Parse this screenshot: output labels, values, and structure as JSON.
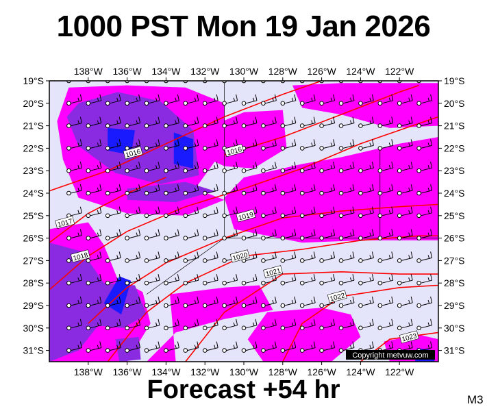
{
  "title": "1000 PST Mon 19 Jan 2026",
  "forecast": "Forecast +54 hr",
  "model": "M3",
  "copyright": "Copyright metvuw.com",
  "colors": {
    "background": "#e4e4fa",
    "rain_light": "#ff00ff",
    "rain_medium": "#8a2be2",
    "rain_heavy": "#1a1aff",
    "isobar": "#ff0000",
    "barb": "#000000"
  },
  "map": {
    "lon_range": [
      -140,
      -120
    ],
    "lat_range": [
      -31.5,
      -19
    ],
    "x_ticks": [
      {
        "value": -138,
        "label": "138°W"
      },
      {
        "value": -136,
        "label": "136°W"
      },
      {
        "value": -134,
        "label": "134°W"
      },
      {
        "value": -132,
        "label": "132°W"
      },
      {
        "value": -130,
        "label": "130°W"
      },
      {
        "value": -128,
        "label": "128°W"
      },
      {
        "value": -126,
        "label": "126°W"
      },
      {
        "value": -124,
        "label": "124°W"
      },
      {
        "value": -122,
        "label": "122°W"
      }
    ],
    "y_ticks": [
      {
        "value": -19,
        "label": "19°S"
      },
      {
        "value": -20,
        "label": "20°S"
      },
      {
        "value": -21,
        "label": "21°S"
      },
      {
        "value": -22,
        "label": "22°S"
      },
      {
        "value": -23,
        "label": "23°S"
      },
      {
        "value": -24,
        "label": "24°S"
      },
      {
        "value": -25,
        "label": "25°S"
      },
      {
        "value": -26,
        "label": "26°S"
      },
      {
        "value": -27,
        "label": "27°S"
      },
      {
        "value": -28,
        "label": "28°S"
      },
      {
        "value": -29,
        "label": "29°S"
      },
      {
        "value": -30,
        "label": "30°S"
      },
      {
        "value": -31,
        "label": "31°S"
      }
    ],
    "isobars": [
      {
        "label": "1016",
        "label_at": [
          -135.7,
          -22.2
        ],
        "points": [
          [
            -140,
            -23.9
          ],
          [
            -137,
            -23
          ],
          [
            -134,
            -21.8
          ],
          [
            -131,
            -20.6
          ],
          [
            -128,
            -19.6
          ],
          [
            -126,
            -19
          ]
        ]
      },
      {
        "label": "1016",
        "label_at": [
          -130.5,
          -22.1
        ],
        "points": [
          [
            -131,
            -22.3
          ],
          [
            -128,
            -21.5
          ],
          [
            -125,
            -20.5
          ],
          [
            -122,
            -19.5
          ],
          [
            -121,
            -19.2
          ]
        ]
      },
      {
        "label": "1017",
        "label_at": [
          -139.2,
          -25.3
        ],
        "points": [
          [
            -140,
            -26.2
          ],
          [
            -138,
            -24.9
          ],
          [
            -136,
            -24
          ],
          [
            -134,
            -23.3
          ]
        ]
      },
      {
        "label": "1018",
        "label_at": [
          -138.4,
          -26.8
        ],
        "points": [
          [
            -140,
            -28.3
          ],
          [
            -138,
            -26.8
          ],
          [
            -136,
            -25.7
          ],
          [
            -133,
            -24.6
          ],
          [
            -130,
            -23.8
          ],
          [
            -127,
            -22.9
          ],
          [
            -124,
            -21.8
          ],
          [
            -121,
            -20.9
          ],
          [
            -120,
            -20.6
          ]
        ]
      },
      {
        "label": "1019",
        "label_at": [
          -129.9,
          -25
        ],
        "points": [
          [
            -138,
            -29.8
          ],
          [
            -136,
            -28.2
          ],
          [
            -134,
            -27.1
          ],
          [
            -131,
            -26
          ],
          [
            -128,
            -25.1
          ],
          [
            -125,
            -24.8
          ],
          [
            -122,
            -24.6
          ],
          [
            -120,
            -24.5
          ]
        ]
      },
      {
        "label": "1020",
        "label_at": [
          -130.2,
          -26.8
        ],
        "points": [
          [
            -137,
            -31.5
          ],
          [
            -135,
            -29.3
          ],
          [
            -133,
            -28
          ],
          [
            -130,
            -26.8
          ],
          [
            -127,
            -26.5
          ],
          [
            -124,
            -26.1
          ],
          [
            -121,
            -25.9
          ],
          [
            -120,
            -25.9
          ]
        ]
      },
      {
        "label": "1021",
        "label_at": [
          -128.5,
          -27.5
        ],
        "points": [
          [
            -133,
            -31.5
          ],
          [
            -131,
            -29.3
          ],
          [
            -128,
            -27.6
          ],
          [
            -125,
            -27.5
          ],
          [
            -122,
            -27.6
          ],
          [
            -120,
            -27.6
          ]
        ]
      },
      {
        "label": "1022",
        "label_at": [
          -125.2,
          -28.6
        ],
        "points": [
          [
            -128,
            -31.5
          ],
          [
            -127,
            -29.8
          ],
          [
            -125,
            -28.6
          ],
          [
            -122,
            -28.2
          ],
          [
            -120,
            -28.1
          ]
        ]
      },
      {
        "label": "1023",
        "label_at": [
          -121.5,
          -30.4
        ],
        "points": [
          [
            -124,
            -31.5
          ],
          [
            -122.5,
            -30.5
          ],
          [
            -120,
            -30.2
          ]
        ]
      }
    ],
    "rain_areas": [
      {
        "level": "light",
        "poly": [
          [
            -139,
            -19.3
          ],
          [
            -136,
            -19.2
          ],
          [
            -133,
            -19.3
          ],
          [
            -131,
            -20
          ],
          [
            -131,
            -22
          ],
          [
            -132.5,
            -23.8
          ],
          [
            -131,
            -24.3
          ],
          [
            -133,
            -25
          ],
          [
            -136,
            -24.9
          ],
          [
            -138.5,
            -24.2
          ],
          [
            -139.3,
            -22.5
          ],
          [
            -139.6,
            -20.8
          ]
        ]
      },
      {
        "level": "light",
        "poly": [
          [
            -133,
            -21.5
          ],
          [
            -130,
            -20.4
          ],
          [
            -128,
            -20.3
          ],
          [
            -127.8,
            -22
          ],
          [
            -129.5,
            -22.9
          ],
          [
            -131,
            -22.8
          ],
          [
            -132.5,
            -22.2
          ]
        ]
      },
      {
        "level": "light",
        "poly": [
          [
            -130,
            -23.3
          ],
          [
            -127,
            -22.7
          ],
          [
            -125,
            -22.4
          ],
          [
            -122,
            -21.8
          ],
          [
            -120,
            -21.5
          ],
          [
            -120,
            -26.1
          ],
          [
            -124,
            -26.1
          ],
          [
            -127,
            -26.2
          ],
          [
            -130.5,
            -25.6
          ],
          [
            -131,
            -24.2
          ]
        ]
      },
      {
        "level": "light",
        "poly": [
          [
            -127.5,
            -19.2
          ],
          [
            -125,
            -19.1
          ],
          [
            -122,
            -19.1
          ],
          [
            -120,
            -19.1
          ],
          [
            -120,
            -21
          ],
          [
            -122.5,
            -21.1
          ],
          [
            -125,
            -20.5
          ],
          [
            -127,
            -20.2
          ]
        ]
      },
      {
        "level": "light",
        "poly": [
          [
            -140,
            -25.6
          ],
          [
            -138,
            -25.3
          ],
          [
            -137.2,
            -26.3
          ],
          [
            -136.5,
            -27.8
          ],
          [
            -135.2,
            -28.4
          ],
          [
            -134.8,
            -29.8
          ],
          [
            -136,
            -31.5
          ],
          [
            -140,
            -31.5
          ]
        ]
      },
      {
        "level": "light",
        "poly": [
          [
            -133.8,
            -28.5
          ],
          [
            -131,
            -28.2
          ],
          [
            -129.2,
            -28.1
          ],
          [
            -128.5,
            -29.2
          ],
          [
            -131,
            -29.6
          ],
          [
            -133.5,
            -30.2
          ],
          [
            -135,
            -31.5
          ],
          [
            -133.5,
            -31.5
          ]
        ]
      },
      {
        "level": "light",
        "poly": [
          [
            -128.8,
            -29.3
          ],
          [
            -126,
            -29.1
          ],
          [
            -124.5,
            -29.4
          ],
          [
            -124,
            -30.4
          ],
          [
            -125.5,
            -31.5
          ],
          [
            -129,
            -31.5
          ],
          [
            -129.8,
            -30.5
          ]
        ]
      },
      {
        "level": "light",
        "poly": [
          [
            -122.8,
            -30.6
          ],
          [
            -121,
            -30.3
          ],
          [
            -120,
            -30.5
          ],
          [
            -120,
            -31.5
          ],
          [
            -122.5,
            -31.5
          ]
        ]
      },
      {
        "level": "medium",
        "poly": [
          [
            -138.5,
            -20
          ],
          [
            -136.5,
            -19.5
          ],
          [
            -134.3,
            -19.9
          ],
          [
            -132.6,
            -21.2
          ],
          [
            -132.3,
            -23.2
          ],
          [
            -134.3,
            -23.6
          ],
          [
            -136.6,
            -23.1
          ],
          [
            -138.5,
            -21.9
          ],
          [
            -139.1,
            -20.6
          ]
        ]
      },
      {
        "level": "medium",
        "poly": [
          [
            -136,
            -23.8
          ],
          [
            -133,
            -23.5
          ],
          [
            -131.5,
            -23.9
          ],
          [
            -133.5,
            -24.4
          ],
          [
            -136,
            -24.3
          ]
        ]
      },
      {
        "level": "medium",
        "poly": [
          [
            -140,
            -26.2
          ],
          [
            -138.3,
            -26.6
          ],
          [
            -137.2,
            -28
          ],
          [
            -135.6,
            -28.1
          ],
          [
            -135,
            -29.4
          ],
          [
            -136.2,
            -30
          ],
          [
            -137.5,
            -29.9
          ],
          [
            -138.5,
            -31
          ],
          [
            -140,
            -31.5
          ]
        ]
      },
      {
        "level": "medium",
        "poly": [
          [
            -136.6,
            -30.5
          ],
          [
            -135.4,
            -30.4
          ],
          [
            -135.3,
            -31.4
          ],
          [
            -136.4,
            -31.5
          ]
        ]
      },
      {
        "level": "heavy",
        "poly": [
          [
            -137,
            -21.1
          ],
          [
            -135.6,
            -21.2
          ],
          [
            -135.8,
            -22.3
          ],
          [
            -137,
            -22.1
          ]
        ]
      },
      {
        "level": "heavy",
        "poly": [
          [
            -133.6,
            -21.3
          ],
          [
            -132.6,
            -21.6
          ],
          [
            -132.6,
            -22.9
          ],
          [
            -133.6,
            -22.7
          ]
        ]
      },
      {
        "level": "heavy",
        "poly": [
          [
            -136.4,
            -27.7
          ],
          [
            -135.8,
            -27.9
          ],
          [
            -136.3,
            -29.4
          ],
          [
            -137.2,
            -28.9
          ]
        ]
      },
      {
        "level": "heavy",
        "poly": [
          [
            -121.1,
            -30.9
          ],
          [
            -120.2,
            -31
          ],
          [
            -120.2,
            -31.5
          ],
          [
            -121.2,
            -31.5
          ]
        ]
      }
    ],
    "barb_grid": {
      "lons": [
        -139,
        -138,
        -137,
        -136,
        -135,
        -134,
        -133,
        -132,
        -131,
        -130,
        -129,
        -128,
        -127,
        -126,
        -125,
        -124,
        -123,
        -122,
        -121
      ],
      "lats": [
        -19,
        -20,
        -21,
        -22,
        -23,
        -24,
        -25,
        -26,
        -27,
        -28,
        -29,
        -30,
        -31
      ]
    }
  }
}
